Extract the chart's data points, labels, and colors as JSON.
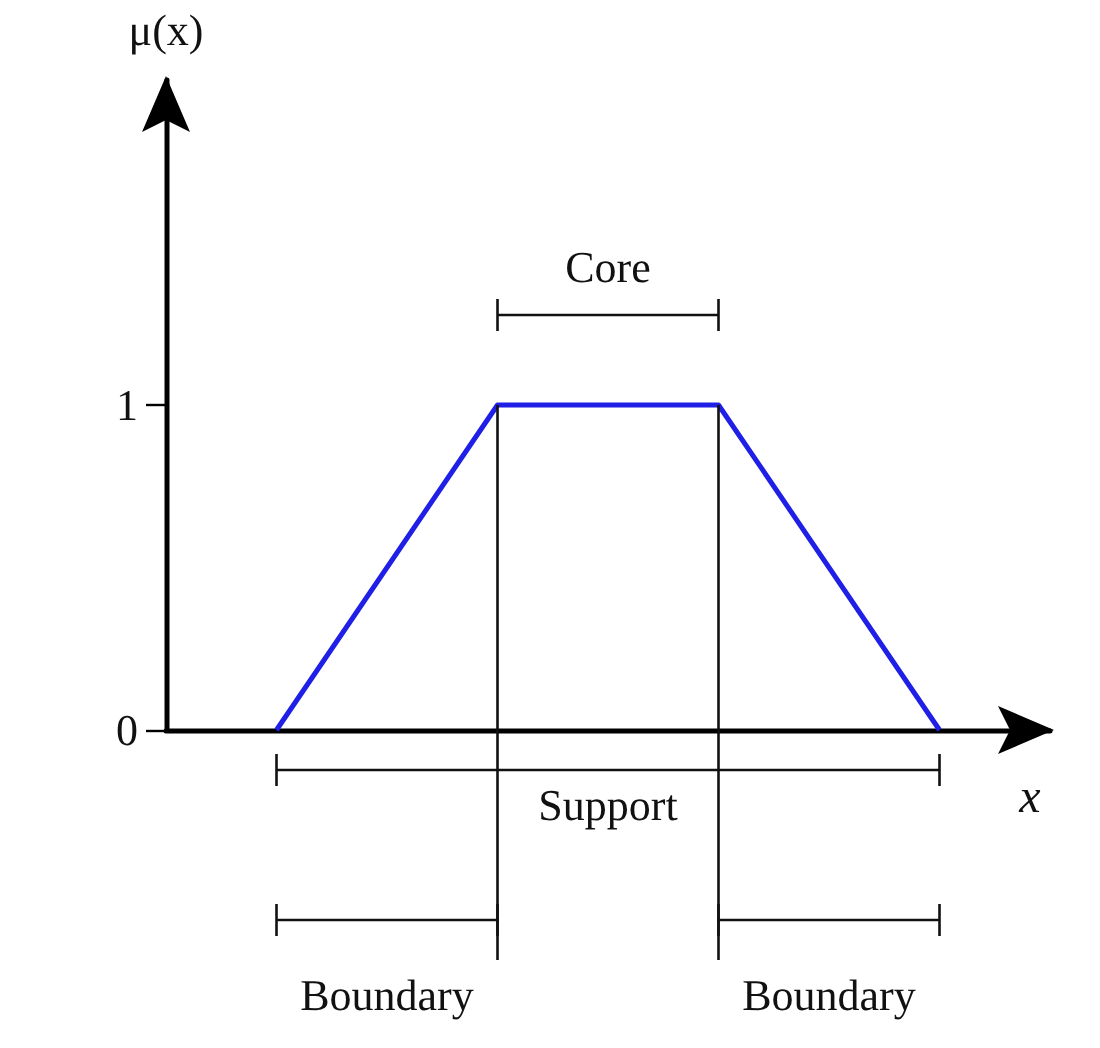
{
  "chart_data": {
    "type": "line",
    "xlabel": "x",
    "ylabel": "μ(x)",
    "categories": [
      null,
      null,
      null,
      null
    ],
    "series": [
      {
        "color": "#1f1fe6",
        "values": [
          0,
          1,
          1,
          0
        ]
      }
    ],
    "ylim": [
      0,
      2
    ],
    "yticks": [
      0,
      1
    ],
    "tick_labels": "y",
    "marker": "none",
    "line_style": "solid",
    "grid": false,
    "annotations": [
      "Core",
      "Support",
      "Boundary",
      "Boundary"
    ]
  }
}
